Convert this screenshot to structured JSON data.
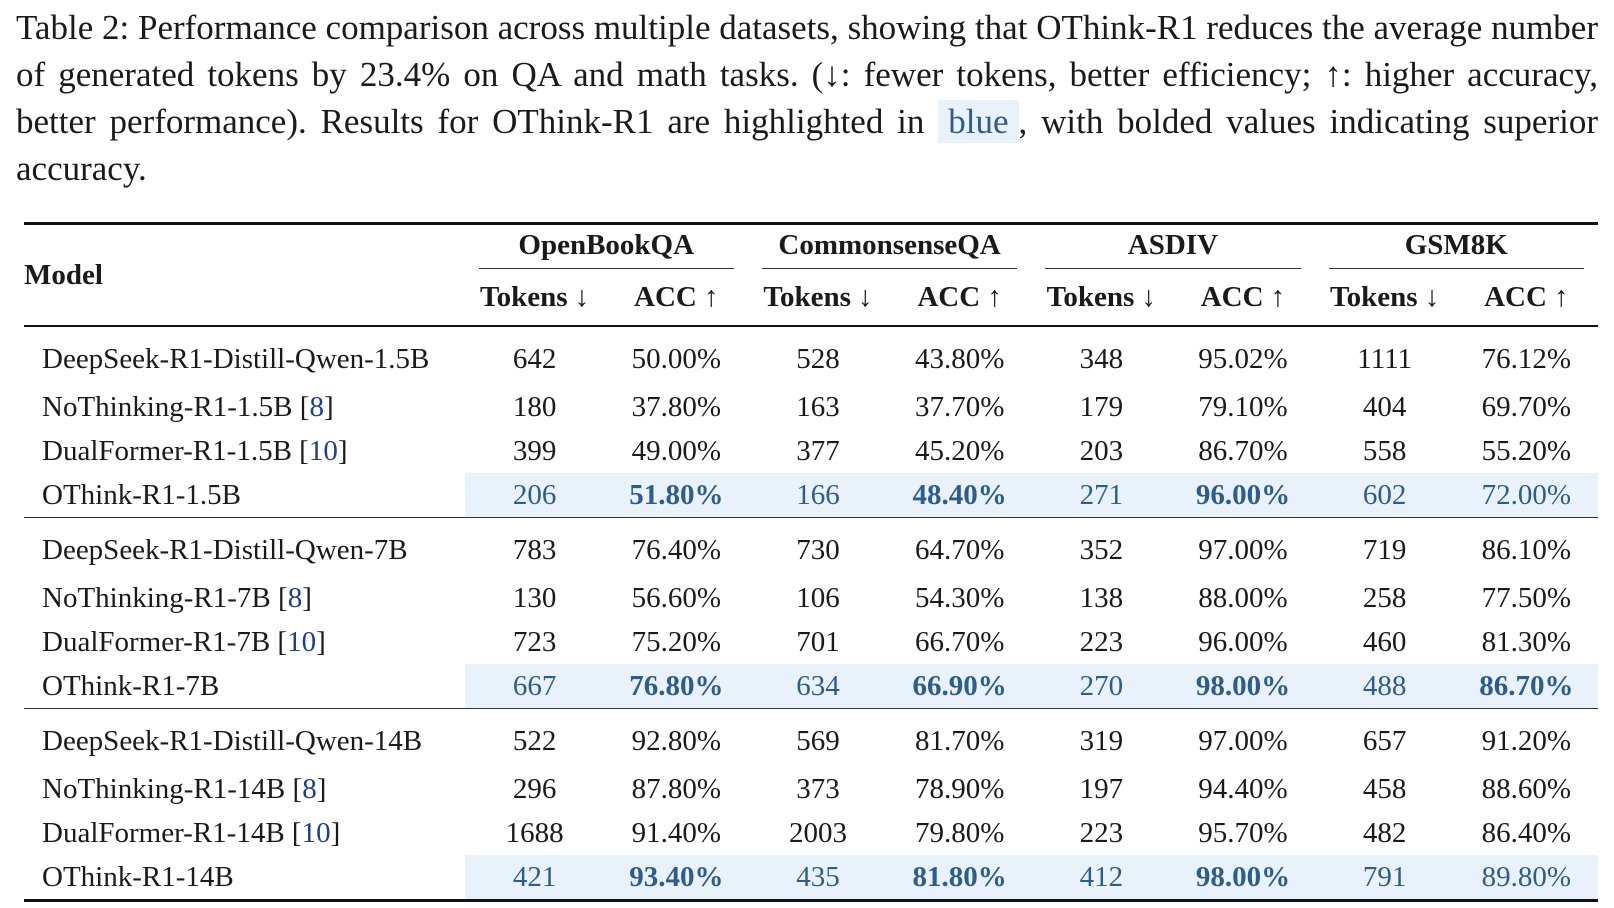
{
  "caption": {
    "part1": "Table 2: Performance comparison across multiple datasets, showing that OThink-R1 reduces the average number of generated tokens by 23.4% on QA and math tasks. (↓: fewer tokens, better efficiency; ↑: higher accuracy, better performance). Results for OThink-R1 are highlighted in",
    "highlight": "blue",
    "part2": ", with bolded values indicating superior accuracy."
  },
  "table": {
    "model_header": "Model",
    "datasets": [
      "OpenBookQA",
      "CommonsenseQA",
      "ASDIV",
      "GSM8K"
    ],
    "sub_headers": [
      "Tokens ↓",
      "ACC ↑"
    ],
    "groups": [
      {
        "rows": [
          {
            "model": "DeepSeek-R1-Distill-Qwen-1.5B",
            "ref": "",
            "ours": false,
            "values": [
              "642",
              "50.00%",
              "528",
              "43.80%",
              "348",
              "95.02%",
              "1111",
              "76.12%"
            ],
            "bold": [
              false,
              false,
              false,
              false,
              false,
              false,
              false,
              false
            ]
          },
          {
            "model": "NoThinking-R1-1.5B",
            "ref": "8",
            "ours": false,
            "values": [
              "180",
              "37.80%",
              "163",
              "37.70%",
              "179",
              "79.10%",
              "404",
              "69.70%"
            ],
            "bold": [
              false,
              false,
              false,
              false,
              false,
              false,
              false,
              false
            ]
          },
          {
            "model": "DualFormer-R1-1.5B",
            "ref": "10",
            "ours": false,
            "values": [
              "399",
              "49.00%",
              "377",
              "45.20%",
              "203",
              "86.70%",
              "558",
              "55.20%"
            ],
            "bold": [
              false,
              false,
              false,
              false,
              false,
              false,
              false,
              false
            ]
          },
          {
            "model": "OThink-R1-1.5B",
            "ref": "",
            "ours": true,
            "values": [
              "206",
              "51.80%",
              "166",
              "48.40%",
              "271",
              "96.00%",
              "602",
              "72.00%"
            ],
            "bold": [
              false,
              true,
              false,
              true,
              false,
              true,
              false,
              false
            ]
          }
        ]
      },
      {
        "rows": [
          {
            "model": "DeepSeek-R1-Distill-Qwen-7B",
            "ref": "",
            "ours": false,
            "values": [
              "783",
              "76.40%",
              "730",
              "64.70%",
              "352",
              "97.00%",
              "719",
              "86.10%"
            ],
            "bold": [
              false,
              false,
              false,
              false,
              false,
              false,
              false,
              false
            ]
          },
          {
            "model": "NoThinking-R1-7B",
            "ref": "8",
            "ours": false,
            "values": [
              "130",
              "56.60%",
              "106",
              "54.30%",
              "138",
              "88.00%",
              "258",
              "77.50%"
            ],
            "bold": [
              false,
              false,
              false,
              false,
              false,
              false,
              false,
              false
            ]
          },
          {
            "model": "DualFormer-R1-7B",
            "ref": "10",
            "ours": false,
            "values": [
              "723",
              "75.20%",
              "701",
              "66.70%",
              "223",
              "96.00%",
              "460",
              "81.30%"
            ],
            "bold": [
              false,
              false,
              false,
              false,
              false,
              false,
              false,
              false
            ]
          },
          {
            "model": "OThink-R1-7B",
            "ref": "",
            "ours": true,
            "values": [
              "667",
              "76.80%",
              "634",
              "66.90%",
              "270",
              "98.00%",
              "488",
              "86.70%"
            ],
            "bold": [
              false,
              true,
              false,
              true,
              false,
              true,
              false,
              true
            ]
          }
        ]
      },
      {
        "rows": [
          {
            "model": "DeepSeek-R1-Distill-Qwen-14B",
            "ref": "",
            "ours": false,
            "values": [
              "522",
              "92.80%",
              "569",
              "81.70%",
              "319",
              "97.00%",
              "657",
              "91.20%"
            ],
            "bold": [
              false,
              false,
              false,
              false,
              false,
              false,
              false,
              false
            ]
          },
          {
            "model": "NoThinking-R1-14B",
            "ref": "8",
            "ours": false,
            "values": [
              "296",
              "87.80%",
              "373",
              "78.90%",
              "197",
              "94.40%",
              "458",
              "88.60%"
            ],
            "bold": [
              false,
              false,
              false,
              false,
              false,
              false,
              false,
              false
            ]
          },
          {
            "model": "DualFormer-R1-14B",
            "ref": "10",
            "ours": false,
            "values": [
              "1688",
              "91.40%",
              "2003",
              "79.80%",
              "223",
              "95.70%",
              "482",
              "86.40%"
            ],
            "bold": [
              false,
              false,
              false,
              false,
              false,
              false,
              false,
              false
            ]
          },
          {
            "model": "OThink-R1-14B",
            "ref": "",
            "ours": true,
            "values": [
              "421",
              "93.40%",
              "435",
              "81.80%",
              "412",
              "98.00%",
              "791",
              "89.80%"
            ],
            "bold": [
              false,
              true,
              false,
              true,
              false,
              true,
              false,
              false
            ]
          }
        ]
      }
    ]
  },
  "colors": {
    "highlight_bg": "#e9f1fa",
    "highlight_text": "#2e5d8a",
    "reference_link": "#1f3f8a"
  }
}
